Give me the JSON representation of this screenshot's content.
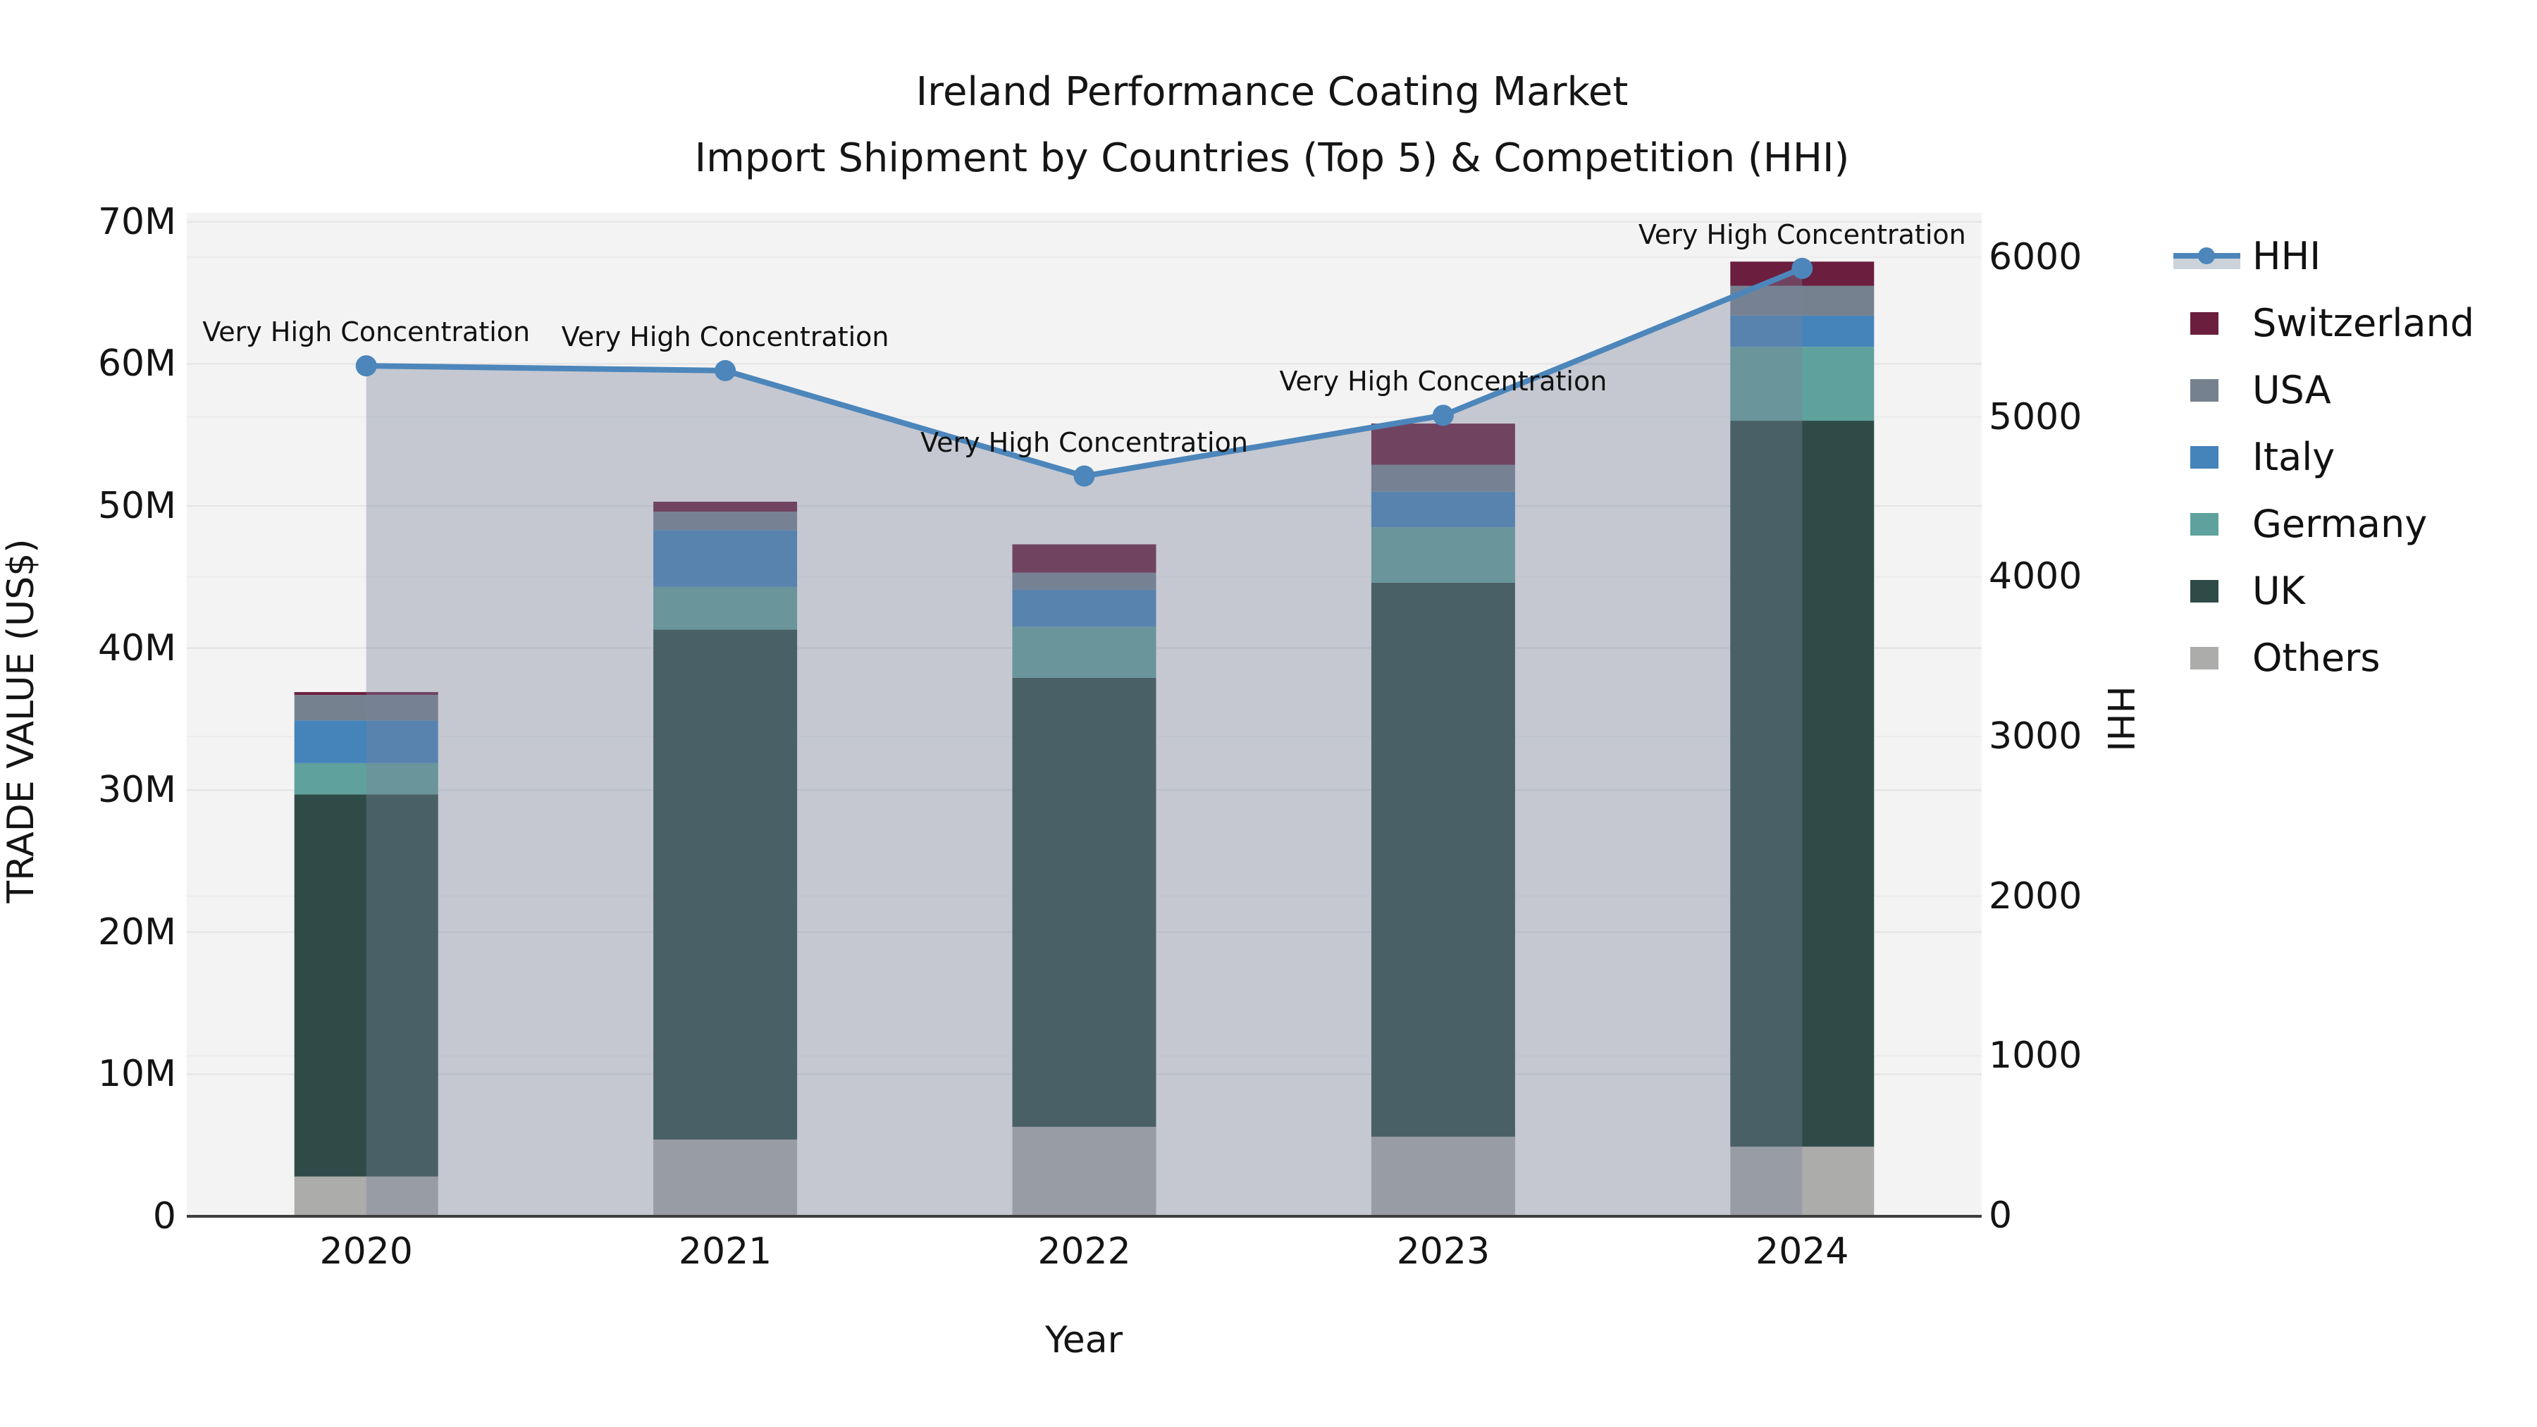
{
  "chart_data": {
    "type": "combo-stacked-bar-line",
    "title_line1": "Ireland Performance Coating Market",
    "title_line2": "Import Shipment by Countries (Top 5) & Competition (HHI)",
    "xlabel": "Year",
    "ylabel_left": "TRADE VALUE (US$)",
    "ylabel_right": "HHI",
    "categories": [
      "2020",
      "2021",
      "2022",
      "2023",
      "2024"
    ],
    "bar_unit": "millions USD",
    "series": [
      {
        "name": "Others",
        "color": "#ACACAB",
        "values": [
          2.8,
          5.4,
          6.3,
          5.6,
          4.9
        ]
      },
      {
        "name": "UK",
        "color": "#2E4B48",
        "values": [
          26.9,
          35.9,
          31.6,
          39.0,
          51.1
        ]
      },
      {
        "name": "Germany",
        "color": "#5FA19C",
        "values": [
          2.2,
          3.0,
          3.6,
          3.9,
          5.2
        ]
      },
      {
        "name": "Italy",
        "color": "#4583BB",
        "values": [
          3.0,
          4.0,
          2.6,
          2.5,
          2.2
        ]
      },
      {
        "name": "USA",
        "color": "#75818F",
        "values": [
          1.8,
          1.3,
          1.2,
          1.9,
          2.1
        ]
      },
      {
        "name": "Switzerland",
        "color": "#6B1E3E",
        "values": [
          0.2,
          0.7,
          2.0,
          2.9,
          1.7
        ]
      }
    ],
    "bar_totals": [
      36.9,
      50.3,
      47.3,
      55.8,
      67.2
    ],
    "line": {
      "name": "HHI",
      "color": "#4C86BB",
      "area_fill": "rgba(120,132,156,0.38)",
      "values": [
        5320,
        5290,
        4630,
        5010,
        5930
      ]
    },
    "annotations": [
      "Very High Concentration",
      "Very High Concentration",
      "Very High Concentration",
      "Very High Concentration",
      "Very High Concentration"
    ],
    "y_left": {
      "tick_labels": [
        "0",
        "10M",
        "20M",
        "30M",
        "40M",
        "50M",
        "60M",
        "70M"
      ],
      "tick_values": [
        0,
        10,
        20,
        30,
        40,
        50,
        60,
        70
      ],
      "range": [
        0,
        70
      ]
    },
    "y_right": {
      "tick_labels": [
        "0",
        "1000",
        "2000",
        "3000",
        "4000",
        "5000",
        "6000"
      ],
      "tick_values": [
        0,
        1000,
        2000,
        3000,
        4000,
        5000,
        6000
      ],
      "range": [
        0,
        6000
      ]
    },
    "legend_order": [
      "HHI",
      "Switzerland",
      "USA",
      "Italy",
      "Germany",
      "UK",
      "Others"
    ],
    "colors": {
      "plot_background": "#f4f3f3",
      "figure_background": "#ffffff",
      "grid_left_axis": "#e3e3e3",
      "grid_right_axis": "#ececec",
      "x_axis_line": "#3d3d3d",
      "legend_area_band": "#ccd2d9"
    }
  }
}
